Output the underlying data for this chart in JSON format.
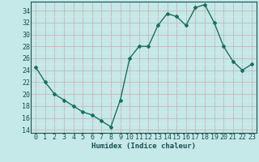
{
  "x": [
    0,
    1,
    2,
    3,
    4,
    5,
    6,
    7,
    8,
    9,
    10,
    11,
    12,
    13,
    14,
    15,
    16,
    17,
    18,
    19,
    20,
    21,
    22,
    23
  ],
  "y": [
    24.5,
    22,
    20,
    19,
    18,
    17,
    16.5,
    15.5,
    14.5,
    19,
    26,
    28,
    28,
    31.5,
    33.5,
    33,
    31.5,
    34.5,
    35,
    32,
    28,
    25.5,
    24,
    25
  ],
  "line_color": "#1a7060",
  "marker": "D",
  "marker_size": 2.0,
  "bg_color": "#c5e8e8",
  "minor_grid_color": "#d4e8e8",
  "major_grid_color": "#c0d8d8",
  "xlabel": "Humidex (Indice chaleur)",
  "xlim": [
    -0.5,
    23.5
  ],
  "ylim": [
    13.5,
    35.5
  ],
  "yticks": [
    14,
    16,
    18,
    20,
    22,
    24,
    26,
    28,
    30,
    32,
    34
  ],
  "xticks": [
    0,
    1,
    2,
    3,
    4,
    5,
    6,
    7,
    8,
    9,
    10,
    11,
    12,
    13,
    14,
    15,
    16,
    17,
    18,
    19,
    20,
    21,
    22,
    23
  ],
  "xlabel_fontsize": 6.5,
  "tick_fontsize": 6.0,
  "line_width": 1.0,
  "tick_color": "#1a5050",
  "spine_color": "#1a5050"
}
